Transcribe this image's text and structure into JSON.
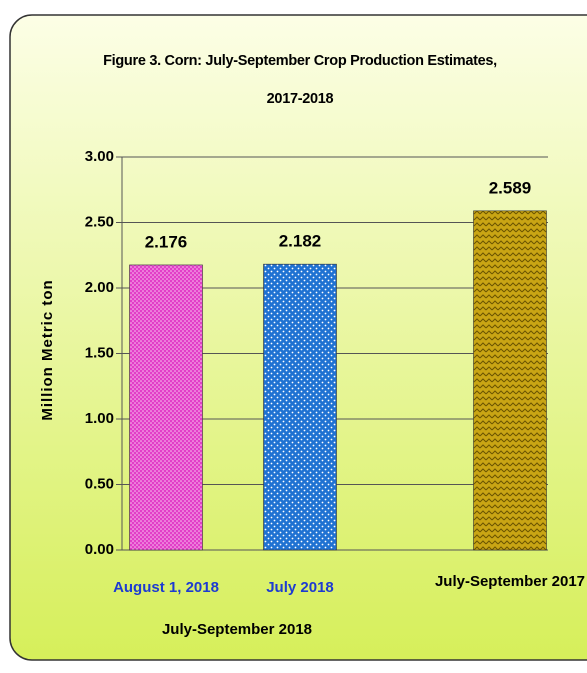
{
  "chart_data": {
    "type": "bar",
    "title": "Figure 3. Corn:  July-September Crop Production Estimates, 2017-2018",
    "y_label": "Million Metric ton",
    "group_label": "July-September 2018",
    "categories": [
      "August 1, 2018",
      "July 2018",
      "July-September 2017"
    ],
    "category_colors": [
      "#1d3bd1",
      "#1d3bd1",
      "#000000"
    ],
    "values": [
      2.176,
      2.182,
      2.589
    ],
    "colors": [
      "#e23ec8",
      "#1f72d2",
      "#c9a514"
    ],
    "ylim": [
      0,
      3
    ],
    "yticks": [
      {
        "value": 0,
        "label": "0.00"
      },
      {
        "value": 0.5,
        "label": "0.50"
      },
      {
        "value": 1,
        "label": "1.00"
      },
      {
        "value": 1.5,
        "label": "1.50"
      },
      {
        "value": 2,
        "label": "2.00"
      },
      {
        "value": 2.5,
        "label": "2.50"
      },
      {
        "value": 3,
        "label": "3.00"
      }
    ],
    "grid": true
  }
}
